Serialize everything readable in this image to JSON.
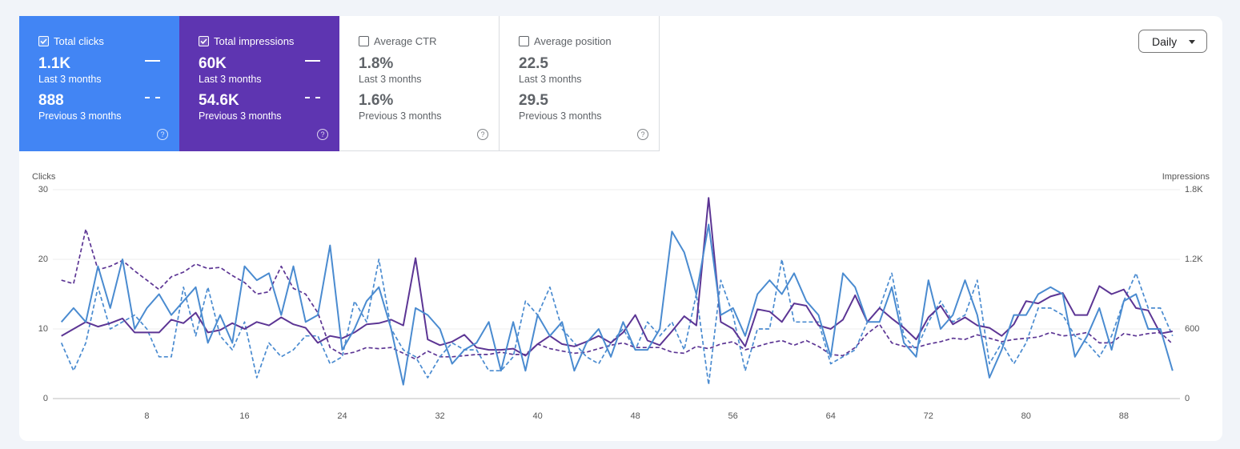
{
  "metric_cards": [
    {
      "label": "Total clicks",
      "checked": true,
      "color": "#4285f4",
      "value": "1.1K",
      "period": "Last 3 months",
      "previous_value": "888",
      "previous_period": "Previous 3 months"
    },
    {
      "label": "Total impressions",
      "checked": true,
      "color": "#5e35b1",
      "value": "60K",
      "period": "Last 3 months",
      "previous_value": "54.6K",
      "previous_period": "Previous 3 months"
    },
    {
      "label": "Average CTR",
      "checked": false,
      "color": "#ffffff",
      "value": "1.8%",
      "period": "Last 3 months",
      "previous_value": "1.6%",
      "previous_period": "Previous 3 months"
    },
    {
      "label": "Average position",
      "checked": false,
      "color": "#ffffff",
      "value": "22.5",
      "period": "Last 3 months",
      "previous_value": "29.5",
      "previous_period": "Previous 3 months"
    }
  ],
  "granularity": "Daily",
  "chart_data": {
    "type": "line",
    "y_label": "Clicks",
    "y2_label": "Impressions",
    "x": [
      1,
      2,
      3,
      4,
      5,
      6,
      7,
      8,
      9,
      10,
      11,
      12,
      13,
      14,
      15,
      16,
      17,
      18,
      19,
      20,
      21,
      22,
      23,
      24,
      25,
      26,
      27,
      28,
      29,
      30,
      31,
      32,
      33,
      34,
      35,
      36,
      37,
      38,
      39,
      40,
      41,
      42,
      43,
      44,
      45,
      46,
      47,
      48,
      49,
      50,
      51,
      52,
      53,
      54,
      55,
      56,
      57,
      58,
      59,
      60,
      61,
      62,
      63,
      64,
      65,
      66,
      67,
      68,
      69,
      70,
      71,
      72,
      73,
      74,
      75,
      76,
      77,
      78,
      79,
      80,
      81,
      82,
      83,
      84,
      85,
      86,
      87,
      88,
      89,
      90,
      91,
      92
    ],
    "xlim": [
      0.3,
      92.6
    ],
    "xticks": [
      8,
      16,
      24,
      32,
      40,
      48,
      56,
      64,
      72,
      80,
      88
    ],
    "ylim": [
      0,
      30
    ],
    "yticks": [
      0,
      10,
      20,
      30
    ],
    "y2lim": [
      0,
      1800
    ],
    "y2ticks": [
      0,
      600,
      {
        "value": 1200,
        "label": "1.2K"
      },
      {
        "value": 1800,
        "label": "1.8K"
      }
    ],
    "grid": true,
    "series": [
      {
        "color": "#5c3594",
        "style": "dashed",
        "axis": "y2",
        "values": [
          1020,
          990,
          1460,
          1110,
          1140,
          1190,
          1100,
          1020,
          940,
          1050,
          1090,
          1160,
          1120,
          1130,
          1060,
          1000,
          900,
          920,
          1140,
          950,
          900,
          740,
          440,
          380,
          400,
          440,
          430,
          440,
          390,
          340,
          410,
          360,
          360,
          370,
          380,
          380,
          400,
          380,
          380,
          470,
          430,
          410,
          390,
          400,
          430,
          460,
          480,
          440,
          440,
          440,
          400,
          390,
          450,
          430,
          470,
          490,
          420,
          450,
          480,
          500,
          460,
          500,
          450,
          380,
          370,
          440,
          560,
          640,
          480,
          450,
          440,
          470,
          490,
          520,
          510,
          550,
          520,
          490,
          510,
          520,
          530,
          570,
          540,
          550,
          570,
          480,
          480,
          560,
          540,
          560,
          570,
          470
        ]
      },
      {
        "color": "#4a8bd0",
        "style": "dashed",
        "axis": "y",
        "values": [
          8,
          4,
          8,
          16,
          10,
          11,
          12,
          10,
          6,
          6,
          16,
          9,
          16,
          9,
          7,
          11,
          3,
          8,
          6,
          7,
          9,
          9,
          5,
          6,
          14,
          11,
          20,
          10,
          7,
          6,
          3,
          6,
          8,
          7,
          7,
          4,
          4,
          6,
          14,
          12,
          16,
          10,
          8,
          6,
          5,
          8,
          10,
          7,
          11,
          9,
          11,
          7,
          15,
          2,
          17,
          12,
          4,
          10,
          10,
          20,
          11,
          11,
          11,
          5,
          6,
          7,
          11,
          13,
          18,
          9,
          7,
          11,
          14,
          11,
          12,
          17,
          5,
          8,
          5,
          8,
          13,
          13,
          12,
          9,
          8,
          6,
          9,
          14,
          18,
          13,
          13,
          9
        ]
      },
      {
        "color": "#5c3594",
        "style": "solid",
        "axis": "y2",
        "values": [
          540,
          600,
          660,
          620,
          650,
          690,
          570,
          570,
          570,
          680,
          650,
          740,
          570,
          590,
          650,
          600,
          660,
          630,
          700,
          640,
          610,
          480,
          540,
          520,
          570,
          640,
          650,
          680,
          630,
          1210,
          510,
          460,
          490,
          550,
          440,
          420,
          420,
          430,
          370,
          470,
          540,
          470,
          450,
          490,
          540,
          480,
          570,
          720,
          500,
          460,
          580,
          710,
          630,
          1730,
          660,
          600,
          450,
          770,
          750,
          660,
          820,
          800,
          630,
          600,
          680,
          890,
          660,
          780,
          690,
          610,
          510,
          700,
          800,
          640,
          700,
          630,
          610,
          540,
          640,
          840,
          820,
          880,
          910,
          720,
          720,
          970,
          900,
          940,
          780,
          760,
          560,
          580
        ]
      },
      {
        "color": "#4a8bd0",
        "style": "solid",
        "axis": "y",
        "values": [
          11,
          13,
          11,
          19,
          13,
          20,
          10,
          13,
          15,
          12,
          14,
          16,
          8,
          12,
          8,
          19,
          17,
          18,
          12,
          19,
          11,
          12,
          22,
          7,
          10,
          14,
          16,
          10,
          2,
          13,
          12,
          10,
          5,
          7,
          8,
          11,
          4,
          11,
          4,
          12,
          9,
          11,
          4,
          8,
          10,
          6,
          11,
          7,
          7,
          10,
          24,
          21,
          15,
          25,
          12,
          13,
          9,
          15,
          17,
          15,
          18,
          14,
          12,
          6,
          18,
          16,
          11,
          11,
          16,
          8,
          6,
          17,
          10,
          12,
          17,
          12,
          3,
          7,
          12,
          12,
          15,
          16,
          15,
          6,
          9,
          13,
          7,
          14,
          15,
          10,
          10,
          4
        ]
      }
    ]
  }
}
